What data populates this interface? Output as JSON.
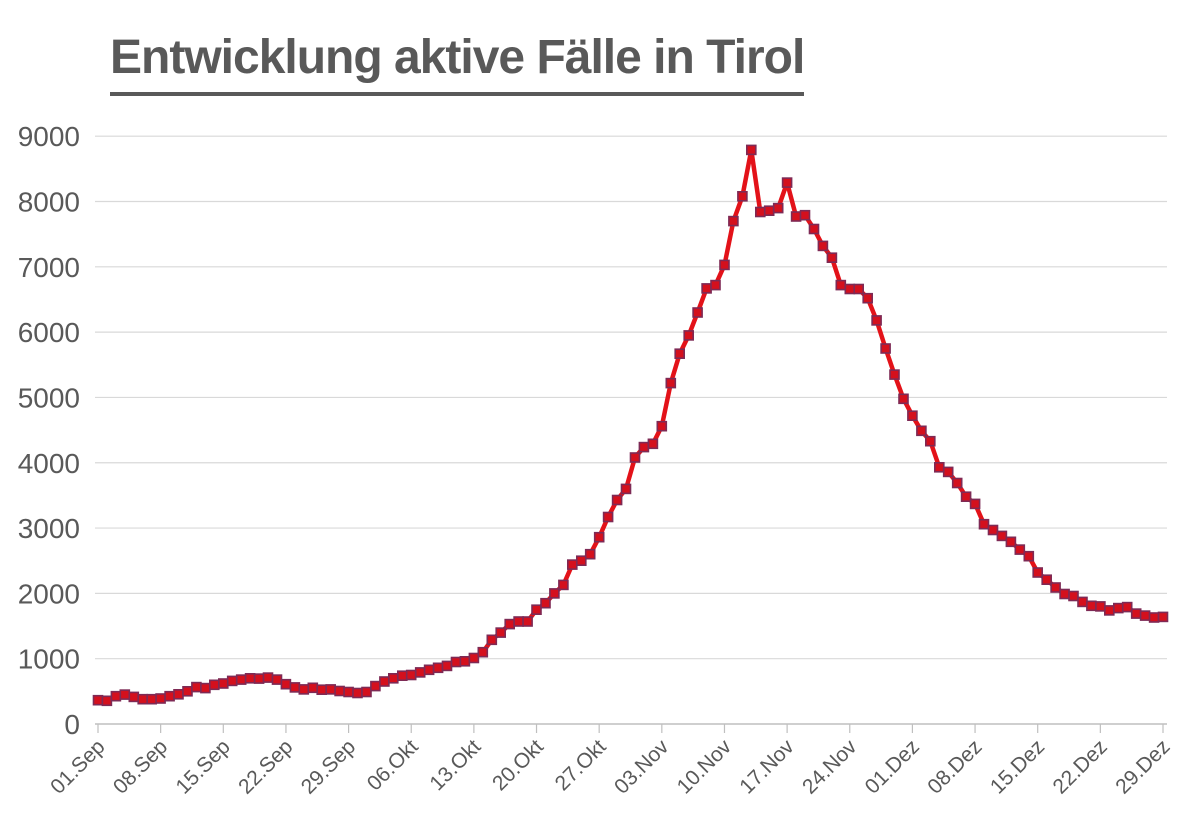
{
  "title": {
    "text": "Entwicklung aktive Fälle in Tirol"
  },
  "chart_data": {
    "type": "line",
    "title": "Entwicklung aktive Fälle in Tirol",
    "xlabel": "",
    "ylabel": "",
    "ylim": [
      0,
      9000
    ],
    "y_ticks": [
      0,
      1000,
      2000,
      3000,
      4000,
      5000,
      6000,
      7000,
      8000,
      9000
    ],
    "grid": "horizontal-only",
    "legend": "none",
    "x_tick_labels": [
      "01.Sep",
      "08.Sep",
      "15.Sep",
      "22.Sep",
      "29.Sep",
      "06.Okt",
      "13.Okt",
      "20.Okt",
      "27.Okt",
      "03.Nov",
      "10.Nov",
      "17.Nov",
      "24.Nov",
      "01.Dez",
      "08.Dez",
      "15.Dez",
      "22.Dez",
      "29.Dez"
    ],
    "x_tick_days": [
      0,
      7,
      14,
      21,
      28,
      35,
      42,
      49,
      56,
      63,
      70,
      77,
      84,
      91,
      98,
      105,
      112,
      119
    ],
    "dates": [
      "01.Sep",
      "02.Sep",
      "03.Sep",
      "04.Sep",
      "05.Sep",
      "06.Sep",
      "07.Sep",
      "08.Sep",
      "09.Sep",
      "10.Sep",
      "11.Sep",
      "12.Sep",
      "13.Sep",
      "14.Sep",
      "15.Sep",
      "16.Sep",
      "17.Sep",
      "18.Sep",
      "19.Sep",
      "20.Sep",
      "21.Sep",
      "22.Sep",
      "23.Sep",
      "24.Sep",
      "25.Sep",
      "26.Sep",
      "27.Sep",
      "28.Sep",
      "29.Sep",
      "30.Sep",
      "01.Okt",
      "02.Okt",
      "03.Okt",
      "04.Okt",
      "05.Okt",
      "06.Okt",
      "07.Okt",
      "08.Okt",
      "09.Okt",
      "10.Okt",
      "11.Okt",
      "12.Okt",
      "13.Okt",
      "14.Okt",
      "15.Okt",
      "16.Okt",
      "17.Okt",
      "18.Okt",
      "19.Okt",
      "20.Okt",
      "21.Okt",
      "22.Okt",
      "23.Okt",
      "24.Okt",
      "25.Okt",
      "26.Okt",
      "27.Okt",
      "28.Okt",
      "29.Okt",
      "30.Okt",
      "31.Okt",
      "01.Nov",
      "02.Nov",
      "03.Nov",
      "04.Nov",
      "05.Nov",
      "06.Nov",
      "07.Nov",
      "08.Nov",
      "09.Nov",
      "10.Nov",
      "11.Nov",
      "12.Nov",
      "13.Nov",
      "14.Nov",
      "15.Nov",
      "16.Nov",
      "17.Nov",
      "18.Nov",
      "19.Nov",
      "20.Nov",
      "21.Nov",
      "22.Nov",
      "23.Nov",
      "24.Nov",
      "25.Nov",
      "26.Nov",
      "27.Nov",
      "28.Nov",
      "29.Nov",
      "30.Nov",
      "01.Dez",
      "02.Dez",
      "03.Dez",
      "04.Dez",
      "05.Dez",
      "06.Dez",
      "07.Dez",
      "08.Dez",
      "09.Dez",
      "10.Dez",
      "11.Dez",
      "12.Dez",
      "13.Dez",
      "14.Dez",
      "15.Dez",
      "16.Dez",
      "17.Dez",
      "18.Dez",
      "19.Dez",
      "20.Dez",
      "21.Dez",
      "22.Dez",
      "23.Dez",
      "24.Dez",
      "25.Dez",
      "26.Dez",
      "27.Dez",
      "28.Dez",
      "29.Dez"
    ],
    "values": [
      365,
      355,
      425,
      450,
      415,
      380,
      380,
      390,
      425,
      455,
      500,
      565,
      550,
      600,
      620,
      660,
      680,
      700,
      695,
      710,
      680,
      610,
      560,
      530,
      555,
      525,
      530,
      505,
      490,
      475,
      490,
      580,
      650,
      700,
      740,
      750,
      790,
      830,
      860,
      890,
      950,
      960,
      1010,
      1100,
      1290,
      1400,
      1530,
      1570,
      1570,
      1750,
      1850,
      2000,
      2130,
      2440,
      2500,
      2600,
      2860,
      3170,
      3430,
      3600,
      4080,
      4240,
      4290,
      4560,
      5220,
      5670,
      5950,
      6300,
      6670,
      6720,
      7030,
      7700,
      8080,
      8790,
      7840,
      7860,
      7900,
      8290,
      7770,
      7790,
      7580,
      7320,
      7140,
      6720,
      6660,
      6660,
      6520,
      6180,
      5750,
      5350,
      4980,
      4720,
      4490,
      4330,
      3930,
      3860,
      3690,
      3480,
      3370,
      3060,
      2970,
      2880,
      2790,
      2670,
      2570,
      2320,
      2210,
      2090,
      1990,
      1960,
      1870,
      1810,
      1800,
      1740,
      1775,
      1790,
      1690,
      1660,
      1630,
      1640
    ],
    "colors": {
      "line": "#e31219",
      "marker_fill": "#d4101d",
      "marker_stroke": "#7e2a55",
      "labels": "#595959",
      "gridlines": "#d9d9d9",
      "axis": "#bfbfbf",
      "title": "#595959"
    },
    "marker_shape": "square"
  }
}
